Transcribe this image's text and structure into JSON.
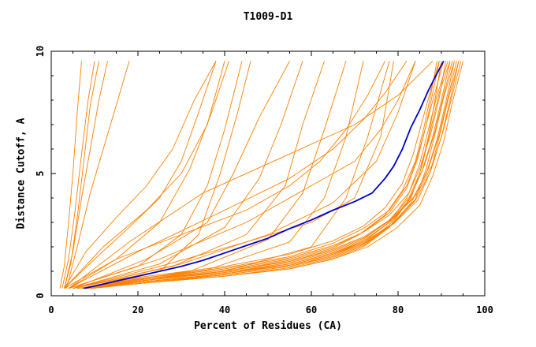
{
  "chart_data": {
    "type": "line",
    "title": "T1009-D1",
    "xlabel": "Percent of Residues (CA)",
    "ylabel": "Distance Cutoff, A",
    "xlim": [
      0,
      100
    ],
    "ylim": [
      0,
      10
    ],
    "xticks": [
      0,
      20,
      40,
      60,
      80,
      100
    ],
    "yticks": [
      0,
      5,
      10
    ],
    "grid": false,
    "legend": "none",
    "colors": {
      "highlight": "#0000cc",
      "others": "#ff8000"
    },
    "highlight_series": {
      "x": [
        7.5,
        10,
        15,
        20,
        25,
        30,
        35,
        40,
        45,
        50,
        55,
        60,
        65,
        70,
        74,
        77,
        79,
        81,
        83,
        85,
        87,
        89,
        90.5
      ],
      "y": [
        0.3,
        0.4,
        0.6,
        0.8,
        1.0,
        1.2,
        1.45,
        1.75,
        2.05,
        2.35,
        2.75,
        3.1,
        3.5,
        3.85,
        4.2,
        4.8,
        5.3,
        6.0,
        6.9,
        7.6,
        8.4,
        9.1,
        9.6
      ]
    },
    "series": [
      {
        "x": [
          2,
          3,
          4,
          5,
          6,
          7
        ],
        "y": [
          0.3,
          1.2,
          3.0,
          5.0,
          7.5,
          9.6
        ]
      },
      {
        "x": [
          2.5,
          4,
          5.5,
          7,
          8.5,
          10
        ],
        "y": [
          0.3,
          1.5,
          3.5,
          5.8,
          8.0,
          9.6
        ]
      },
      {
        "x": [
          3,
          4.5,
          6,
          7.5,
          9,
          11
        ],
        "y": [
          0.3,
          1.3,
          3.2,
          5.5,
          7.8,
          9.6
        ]
      },
      {
        "x": [
          3,
          5,
          7,
          9,
          11,
          13
        ],
        "y": [
          0.3,
          1.8,
          4.0,
          6.0,
          8.0,
          9.6
        ]
      },
      {
        "x": [
          3.5,
          6,
          9,
          12,
          15,
          18
        ],
        "y": [
          0.3,
          2.0,
          4.2,
          6.0,
          7.8,
          9.6
        ]
      },
      {
        "x": [
          3,
          8,
          15,
          22,
          28,
          33,
          38
        ],
        "y": [
          0.3,
          1.8,
          3.2,
          4.5,
          6.0,
          8.0,
          9.6
        ]
      },
      {
        "x": [
          3,
          10,
          18,
          25,
          30,
          34,
          38
        ],
        "y": [
          0.3,
          1.5,
          2.8,
          4.0,
          5.5,
          7.5,
          9.6
        ]
      },
      {
        "x": [
          3,
          12,
          22,
          30,
          36,
          40
        ],
        "y": [
          0.3,
          2.0,
          3.5,
          5.0,
          7.0,
          9.6
        ]
      },
      {
        "x": [
          4,
          15,
          25,
          32,
          37,
          41
        ],
        "y": [
          0.3,
          1.5,
          3.0,
          5.2,
          7.5,
          9.6
        ]
      },
      {
        "x": [
          4,
          20,
          30,
          36,
          40,
          44
        ],
        "y": [
          0.3,
          1.2,
          2.5,
          4.5,
          6.8,
          9.6
        ]
      },
      {
        "x": [
          5,
          25,
          34,
          39,
          43,
          46
        ],
        "y": [
          0.3,
          1.0,
          2.5,
          5.0,
          7.5,
          9.6
        ]
      },
      {
        "x": [
          5,
          22,
          36,
          42,
          48,
          55
        ],
        "y": [
          0.3,
          1.5,
          3.0,
          5.0,
          7.3,
          9.6
        ]
      },
      {
        "x": [
          5,
          25,
          40,
          48,
          53,
          58
        ],
        "y": [
          0.3,
          1.3,
          2.8,
          4.8,
          7.0,
          9.6
        ]
      },
      {
        "x": [
          5,
          28,
          45,
          54,
          58,
          63
        ],
        "y": [
          0.3,
          1.2,
          2.5,
          4.5,
          7.0,
          9.6
        ]
      },
      {
        "x": [
          6,
          32,
          50,
          58,
          63,
          68
        ],
        "y": [
          0.3,
          1.0,
          2.3,
          4.2,
          6.8,
          9.6
        ]
      },
      {
        "x": [
          6,
          35,
          55,
          63,
          68,
          72
        ],
        "y": [
          0.3,
          1.0,
          2.2,
          4.0,
          6.5,
          9.6
        ]
      },
      {
        "x": [
          6,
          40,
          60,
          68,
          73,
          78
        ],
        "y": [
          0.3,
          1.0,
          2.0,
          4.0,
          6.5,
          9.6
        ]
      },
      {
        "x": [
          3,
          15,
          30,
          45,
          55,
          62,
          68,
          73,
          77
        ],
        "y": [
          0.3,
          1.5,
          2.5,
          3.5,
          4.5,
          5.5,
          6.8,
          8.2,
          9.6
        ]
      },
      {
        "x": [
          4,
          20,
          40,
          55,
          65,
          72,
          77,
          82
        ],
        "y": [
          0.3,
          1.8,
          3.5,
          4.8,
          6.0,
          7.2,
          8.3,
          9.6
        ]
      },
      {
        "x": [
          4,
          25,
          45,
          60,
          70,
          76,
          80,
          84
        ],
        "y": [
          0.3,
          1.5,
          3.0,
          4.5,
          5.5,
          6.8,
          8.0,
          9.6
        ]
      },
      {
        "x": [
          5,
          30,
          50,
          65,
          75,
          80,
          84
        ],
        "y": [
          0.3,
          1.3,
          2.5,
          3.8,
          5.5,
          7.5,
          9.6
        ]
      },
      {
        "x": [
          4,
          18,
          35,
          55,
          70,
          80,
          88
        ],
        "y": [
          0.3,
          2.2,
          4.2,
          5.8,
          7.0,
          8.2,
          9.6
        ]
      },
      {
        "x": [
          5,
          25,
          45,
          60,
          70,
          76,
          79
        ],
        "y": [
          0.3,
          1.2,
          2.2,
          3.0,
          4.0,
          6.5,
          9.6
        ]
      },
      {
        "x": [
          7,
          20,
          40,
          55,
          65,
          72,
          78,
          82,
          85,
          87,
          88.5,
          90
        ],
        "y": [
          0.3,
          0.5,
          0.8,
          1.1,
          1.5,
          2.0,
          2.8,
          3.8,
          5.0,
          6.5,
          8.0,
          9.6
        ]
      },
      {
        "x": [
          7,
          20,
          40,
          55,
          65,
          72,
          78,
          82,
          85,
          87.5,
          89.5,
          91
        ],
        "y": [
          0.3,
          0.55,
          0.9,
          1.25,
          1.7,
          2.2,
          3.0,
          4.0,
          5.2,
          6.6,
          8.1,
          9.6
        ]
      },
      {
        "x": [
          7.5,
          20,
          40,
          55,
          65,
          72,
          78,
          82.5,
          85.5,
          88,
          90,
          92
        ],
        "y": [
          0.3,
          0.55,
          0.85,
          1.2,
          1.6,
          2.1,
          2.9,
          3.9,
          5.1,
          6.5,
          8.0,
          9.6
        ]
      },
      {
        "x": [
          8,
          20,
          40,
          55,
          65,
          72,
          78,
          83,
          86,
          88.5,
          90.5,
          92.5
        ],
        "y": [
          0.3,
          0.6,
          0.95,
          1.35,
          1.8,
          2.3,
          3.1,
          4.1,
          5.3,
          6.7,
          8.2,
          9.6
        ]
      },
      {
        "x": [
          8,
          20,
          40,
          55,
          65,
          72,
          78,
          83,
          86.5,
          89,
          91,
          93
        ],
        "y": [
          0.3,
          0.5,
          0.8,
          1.15,
          1.55,
          2.05,
          2.8,
          3.8,
          5.0,
          6.4,
          7.9,
          9.6
        ]
      },
      {
        "x": [
          8.5,
          20,
          40,
          55,
          65,
          72,
          78,
          83.5,
          87,
          89.5,
          91.5,
          93.5
        ],
        "y": [
          0.3,
          0.55,
          0.9,
          1.3,
          1.75,
          2.25,
          3.0,
          4.0,
          5.2,
          6.6,
          8.1,
          9.6
        ]
      },
      {
        "x": [
          9,
          20,
          40,
          55,
          65,
          72,
          78.5,
          84,
          87.5,
          90,
          92,
          94
        ],
        "y": [
          0.3,
          0.5,
          0.85,
          1.2,
          1.65,
          2.15,
          2.9,
          3.9,
          5.1,
          6.5,
          8.0,
          9.6
        ]
      },
      {
        "x": [
          9,
          20,
          40,
          55,
          65,
          72,
          79,
          84.5,
          88,
          90.5,
          92.5,
          94.5
        ],
        "y": [
          0.3,
          0.6,
          1.0,
          1.4,
          1.9,
          2.4,
          3.2,
          4.2,
          5.4,
          6.8,
          8.2,
          9.6
        ]
      },
      {
        "x": [
          7,
          20,
          40,
          55,
          65,
          72,
          78,
          82,
          84.5,
          86.5,
          88,
          89.5
        ],
        "y": [
          0.3,
          0.65,
          1.05,
          1.5,
          2.0,
          2.6,
          3.4,
          4.4,
          5.6,
          7.0,
          8.3,
          9.6
        ]
      },
      {
        "x": [
          7,
          20,
          40,
          55,
          65,
          71,
          77,
          81,
          84,
          86,
          87.5,
          89
        ],
        "y": [
          0.3,
          0.6,
          1.0,
          1.45,
          1.95,
          2.5,
          3.3,
          4.3,
          5.5,
          6.9,
          8.2,
          9.6
        ]
      },
      {
        "x": [
          7.5,
          20,
          40,
          55,
          65,
          72,
          78,
          82.5,
          85,
          87,
          89,
          91.5
        ],
        "y": [
          0.3,
          0.7,
          1.1,
          1.55,
          2.05,
          2.6,
          3.3,
          4.2,
          5.4,
          6.8,
          8.2,
          9.6
        ]
      },
      {
        "x": [
          8,
          20,
          40,
          55,
          65,
          72,
          78,
          83,
          85.5,
          87.5,
          89.5,
          92
        ],
        "y": [
          0.3,
          0.65,
          1.0,
          1.4,
          1.85,
          2.35,
          3.05,
          4.0,
          5.3,
          6.8,
          8.3,
          9.6
        ]
      },
      {
        "x": [
          8,
          20,
          40,
          55,
          65,
          72,
          79,
          84,
          86.5,
          88.5,
          90.5,
          93
        ],
        "y": [
          0.3,
          0.6,
          0.95,
          1.3,
          1.75,
          2.2,
          2.95,
          3.95,
          5.2,
          6.6,
          8.1,
          9.6
        ]
      },
      {
        "x": [
          9,
          20,
          40,
          55,
          65,
          73,
          79,
          84.5,
          87.5,
          89.5,
          91.5,
          94
        ],
        "y": [
          0.3,
          0.55,
          0.9,
          1.25,
          1.7,
          2.2,
          2.95,
          3.9,
          5.1,
          6.5,
          8.0,
          9.6
        ]
      },
      {
        "x": [
          9.5,
          20,
          40,
          55,
          65,
          73,
          79.5,
          85,
          88,
          90.5,
          92.5,
          95
        ],
        "y": [
          0.3,
          0.5,
          0.8,
          1.1,
          1.5,
          2.0,
          2.75,
          3.7,
          4.9,
          6.3,
          7.9,
          9.6
        ]
      },
      {
        "x": [
          8,
          20,
          40,
          55,
          65,
          72,
          77,
          81,
          83.5,
          85.5,
          87.5,
          89.5
        ],
        "y": [
          0.3,
          0.75,
          1.2,
          1.7,
          2.25,
          2.85,
          3.6,
          4.6,
          5.8,
          7.1,
          8.4,
          9.6
        ]
      },
      {
        "x": [
          8.5,
          20,
          40,
          55,
          65,
          72,
          78,
          82,
          84.5,
          86.5,
          88.5,
          90.5
        ],
        "y": [
          0.3,
          0.7,
          1.15,
          1.6,
          2.15,
          2.75,
          3.5,
          4.5,
          5.7,
          7.0,
          8.3,
          9.6
        ]
      }
    ]
  }
}
